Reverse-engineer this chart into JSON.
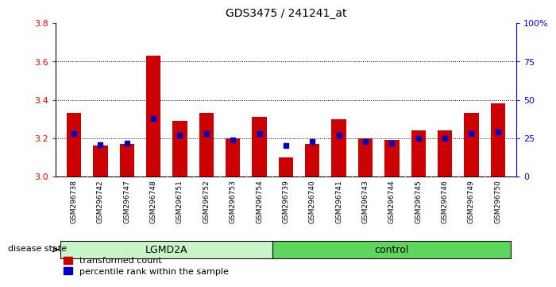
{
  "title": "GDS3475 / 241241_at",
  "samples": [
    "GSM296738",
    "GSM296742",
    "GSM296747",
    "GSM296748",
    "GSM296751",
    "GSM296752",
    "GSM296753",
    "GSM296754",
    "GSM296739",
    "GSM296740",
    "GSM296741",
    "GSM296743",
    "GSM296744",
    "GSM296745",
    "GSM296746",
    "GSM296749",
    "GSM296750"
  ],
  "transformed_count": [
    3.33,
    3.16,
    3.17,
    3.63,
    3.29,
    3.33,
    3.2,
    3.31,
    3.1,
    3.17,
    3.3,
    3.2,
    3.19,
    3.24,
    3.24,
    3.33,
    3.38
  ],
  "percentile_rank": [
    28,
    21,
    22,
    38,
    27,
    28,
    24,
    28,
    20,
    23,
    27,
    23,
    22,
    25,
    25,
    28,
    29
  ],
  "group_labels": [
    "LGMD2A",
    "control"
  ],
  "group_ranges": [
    [
      0,
      8
    ],
    [
      8,
      17
    ]
  ],
  "lgmd2a_color": "#c8f5c8",
  "control_color": "#5cd65c",
  "ylim_left": [
    3.0,
    3.8
  ],
  "ylim_right": [
    0,
    100
  ],
  "yticks_left": [
    3.0,
    3.2,
    3.4,
    3.6,
    3.8
  ],
  "yticks_right": [
    0,
    25,
    50,
    75,
    100
  ],
  "ytick_labels_right": [
    "0",
    "25",
    "50",
    "75",
    "100%"
  ],
  "bar_color": "#cc0000",
  "dot_color": "#0000cc",
  "bar_width": 0.55,
  "background_color": "#ffffff",
  "grid_dotted_at": [
    3.2,
    3.4,
    3.6
  ],
  "disease_state_label": "disease state",
  "legend_items": [
    "transformed count",
    "percentile rank within the sample"
  ]
}
